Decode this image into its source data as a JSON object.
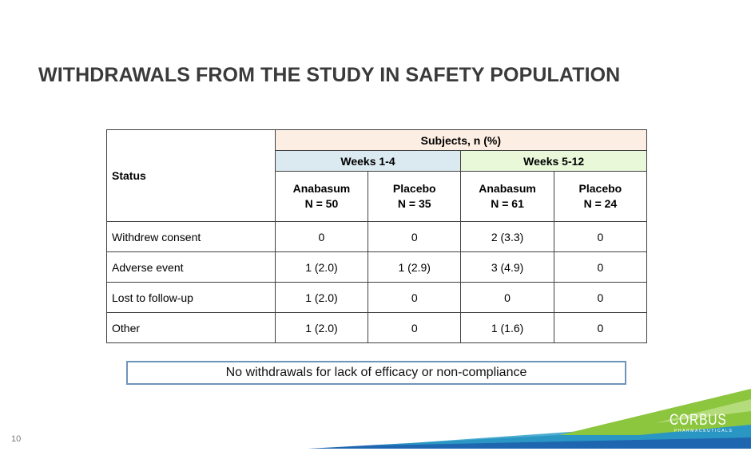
{
  "slide": {
    "title": "WITHDRAWALS FROM THE STUDY IN SAFETY POPULATION",
    "page_number": "10"
  },
  "table": {
    "status_header": "Status",
    "group_header": "Subjects, n (%)",
    "periods": [
      "Weeks 1-4",
      "Weeks 5-12"
    ],
    "arms": [
      {
        "name": "Anabasum",
        "n": "N = 50"
      },
      {
        "name": "Placebo",
        "n": "N = 35"
      },
      {
        "name": "Anabasum",
        "n": "N = 61"
      },
      {
        "name": "Placebo",
        "n": "N = 24"
      }
    ],
    "rows": [
      {
        "label": "Withdrew consent",
        "values": [
          "0",
          "0",
          "2 (3.3)",
          "0"
        ]
      },
      {
        "label": "Adverse event",
        "values": [
          "1 (2.0)",
          "1 (2.9)",
          "3 (4.9)",
          "0"
        ]
      },
      {
        "label": "Lost to follow-up",
        "values": [
          "1 (2.0)",
          "0",
          "0",
          "0"
        ]
      },
      {
        "label": "Other",
        "values": [
          "1 (2.0)",
          "0",
          "1 (1.6)",
          "0"
        ]
      }
    ]
  },
  "note": "No withdrawals for lack of efficacy or non-compliance",
  "logo": {
    "word": "CORBUS",
    "subtitle": "PHARMACEUTICALS"
  },
  "colors": {
    "title": "#3a3a3a",
    "subjects_header_bg": "#fdeee3",
    "weeks_1_4_bg": "#dbe9f1",
    "weeks_5_12_bg": "#e8f8d9",
    "note_border": "#6e94b9",
    "swoosh_green": "#8cc63f",
    "swoosh_blue": "#1f66b0",
    "swoosh_teal": "#2d9fc8"
  }
}
